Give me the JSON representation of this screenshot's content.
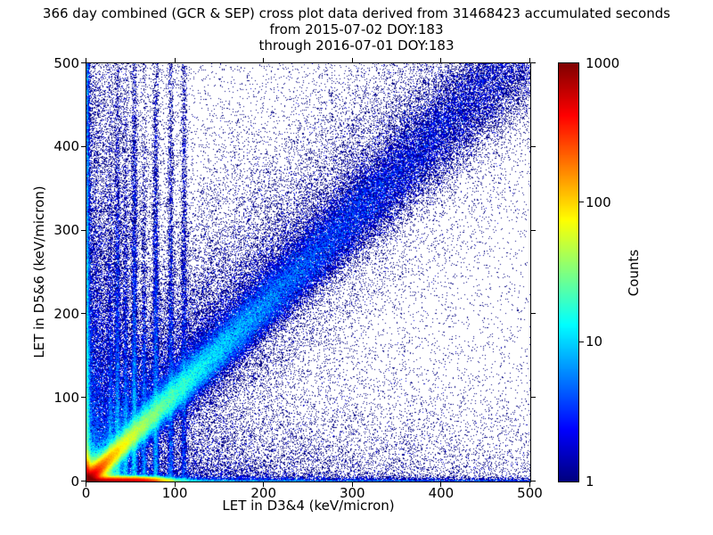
{
  "chart_data": {
    "type": "heatmap",
    "title": "366 day combined (GCR & SEP) cross plot data derived from 31468423 accumulated seconds",
    "subtitle1": "from 2015-07-02 DOY:183",
    "subtitle2": "through 2016-07-01 DOY:183",
    "xlabel": "LET in D3&4 (keV/micron)",
    "ylabel": "LET in D5&6 (keV/micron)",
    "xlim": [
      0,
      500
    ],
    "ylim": [
      0,
      500
    ],
    "xticks": [
      0,
      100,
      200,
      300,
      400,
      500
    ],
    "yticks": [
      0,
      100,
      200,
      300,
      400,
      500
    ],
    "grid": false,
    "background": "#ffffff",
    "point_color_min": "#000080",
    "colorbar": {
      "label": "Counts",
      "scale": "log",
      "range": [
        1,
        1000
      ],
      "ticks": [
        1000,
        100,
        10,
        1
      ],
      "colormap": "jet",
      "position": "right"
    },
    "description": "2D histogram (log-count, jet colormap) of coincident LET in detector pair D3&4 vs D5&6. Hot red/orange core at the origin with rays, a dense diagonal band near y=x fading from yellow/green/cyan near origin to sparse dark blue toward (500,500), a red-to-blue band hugging the x axis, a bright blue/cyan column hugging the y axis, faint vertical streaks at low x, and diffuse dark-blue single-count speckle concentrated near the axes and above the diagonal.",
    "density_model": {
      "seed": 42,
      "bins": [
        498,
        469
      ],
      "origin_blob": {
        "amp": 1200,
        "scale": 7
      },
      "diagonal_band": {
        "slope": 1.05,
        "sigma0": 3.5,
        "sigma_growth": 0.05,
        "amp_terms": [
          [
            450,
            14
          ],
          [
            90,
            50
          ],
          [
            12,
            150
          ],
          [
            2.0,
            380
          ]
        ],
        "halo": {
          "amp_terms": [
            [
              1.0,
              200
            ]
          ],
          "base": 0.1,
          "sigma_mult": 3.2,
          "asym": 0.35
        }
      },
      "bottom_band": {
        "sigma": 2.5,
        "sigmoid": [
          700,
          72,
          9
        ],
        "amp_terms": [
          [
            5,
            250
          ]
        ],
        "base": 1.2,
        "thin_line": {
          "amp": 3.5,
          "scale": 400,
          "base": 1.0,
          "ymax": 1.5
        },
        "spread": [
          [
            4,
            150,
            6
          ]
        ]
      },
      "left_band": {
        "sigma": 2.0,
        "sigmoid": [
          400,
          15,
          6
        ],
        "amp_terms": [
          [
            25,
            40
          ],
          [
            12,
            200
          ]
        ],
        "base": 4.5,
        "cloud": [
          [
            6,
            14,
            90
          ],
          [
            2.5,
            30,
            200
          ]
        ]
      },
      "vertical_streaks": {
        "width": 1.8,
        "items": [
          [
            27,
            6,
            120
          ],
          [
            35,
            9,
            160
          ],
          [
            44,
            7,
            140
          ],
          [
            54,
            10,
            180
          ],
          [
            65,
            6,
            130
          ],
          [
            78,
            8,
            200
          ],
          [
            95,
            4,
            260
          ],
          [
            110,
            3,
            320
          ]
        ]
      },
      "rays": {
        "sigma0": 2.0,
        "sigma_growth": 0.03,
        "items": [
          [
            1.35,
            4,
            130
          ],
          [
            1.75,
            3,
            120
          ],
          [
            2.4,
            2.5,
            110
          ],
          [
            0.72,
            2,
            100
          ]
        ]
      },
      "diffuse": [
        [
          1.3,
          55,
          220
        ],
        [
          0.8,
          300,
          55
        ],
        [
          0.18,
          250,
          250
        ]
      ],
      "uniform": 0.012
    }
  }
}
